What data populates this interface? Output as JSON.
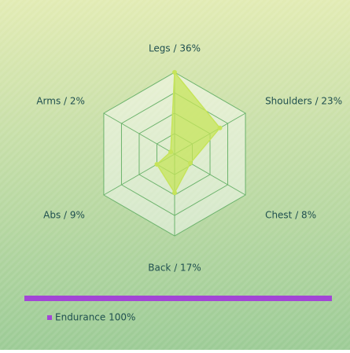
{
  "chart_data": {
    "type": "radar",
    "categories": [
      "Legs / 36%",
      "Shoulders / 23%",
      "Chest / 8%",
      "Back / 17%",
      "Abs / 9%",
      "Arms / 2%"
    ],
    "series": [
      {
        "name": "Endurance 100%",
        "color": "#a246d6",
        "fill": "#c6e45a",
        "values": [
          36,
          23,
          8,
          17,
          9,
          2
        ]
      }
    ],
    "rlim": [
      0,
      36
    ],
    "rticks": [
      9,
      18,
      27,
      36
    ],
    "grid": true
  }
}
